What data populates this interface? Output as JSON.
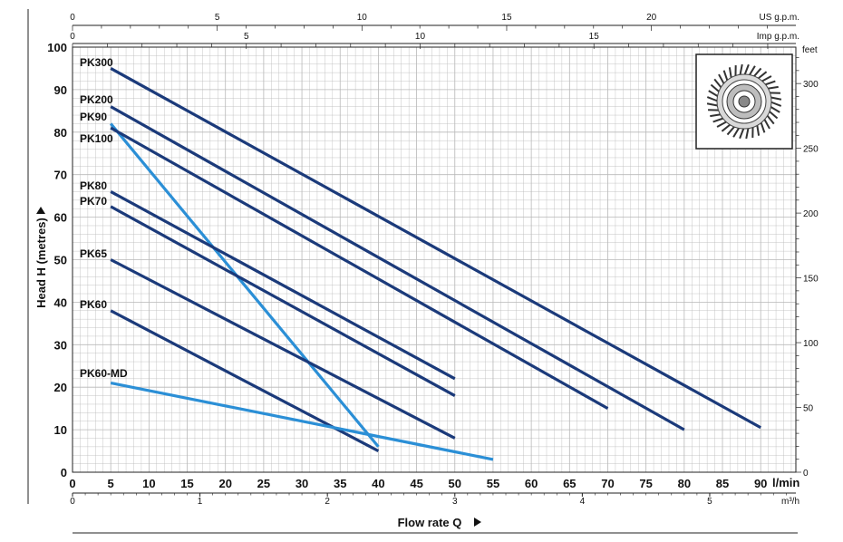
{
  "chart_data": {
    "type": "line",
    "title": "",
    "xlabel": "Flow rate  Q",
    "ylabel": "Head H  (metres)",
    "x_unit": "l/min",
    "xlim": [
      0,
      90
    ],
    "ylim": [
      0,
      100
    ],
    "x_ticks": [
      0,
      5,
      10,
      15,
      20,
      25,
      30,
      35,
      40,
      45,
      50,
      55,
      60,
      65,
      70,
      75,
      80,
      85,
      90
    ],
    "y_ticks": [
      0,
      10,
      20,
      30,
      40,
      50,
      60,
      70,
      80,
      90,
      100
    ],
    "secondary_axes": {
      "us_gpm": {
        "label": "US g.p.m.",
        "ticks": [
          "0",
          "5",
          "10",
          "15",
          "20"
        ]
      },
      "imp_gpm": {
        "label": "Imp g.p.m.",
        "ticks": [
          "0",
          "5",
          "10",
          "15"
        ]
      },
      "m3h": {
        "label": "m³/h",
        "ticks": [
          "0",
          "1",
          "2",
          "3",
          "4",
          "5"
        ]
      },
      "feet": {
        "label": "feet",
        "ticks": [
          "0",
          "50",
          "100",
          "150",
          "200",
          "250",
          "300"
        ]
      }
    },
    "grid": true,
    "series": [
      {
        "name": "PK300",
        "color": "#1b3a7a",
        "points": [
          [
            5,
            95
          ],
          [
            90,
            10.5
          ]
        ]
      },
      {
        "name": "PK200",
        "color": "#1b3a7a",
        "points": [
          [
            5,
            86
          ],
          [
            80,
            10
          ]
        ]
      },
      {
        "name": "PK90",
        "color": "#2b8fd6",
        "points": [
          [
            5,
            82
          ],
          [
            40,
            6
          ]
        ]
      },
      {
        "name": "PK100",
        "color": "#1b3a7a",
        "points": [
          [
            5,
            81
          ],
          [
            70,
            15
          ]
        ]
      },
      {
        "name": "PK80",
        "color": "#1b3a7a",
        "points": [
          [
            5,
            66
          ],
          [
            50,
            22
          ]
        ]
      },
      {
        "name": "PK70",
        "color": "#1b3a7a",
        "points": [
          [
            5,
            62.5
          ],
          [
            50,
            18
          ]
        ]
      },
      {
        "name": "PK65",
        "color": "#1b3a7a",
        "points": [
          [
            5,
            50
          ],
          [
            50,
            8
          ]
        ]
      },
      {
        "name": "PK60",
        "color": "#1b3a7a",
        "points": [
          [
            5,
            38
          ],
          [
            40,
            5
          ]
        ]
      },
      {
        "name": "PK60-MD",
        "color": "#2b8fd6",
        "points": [
          [
            5,
            21
          ],
          [
            55,
            3
          ]
        ]
      }
    ]
  },
  "colors": {
    "navy": "#1b3a7a",
    "light_blue": "#2b8fd6",
    "grid": "#b8b8b8"
  },
  "inset_icon": "impeller-icon"
}
